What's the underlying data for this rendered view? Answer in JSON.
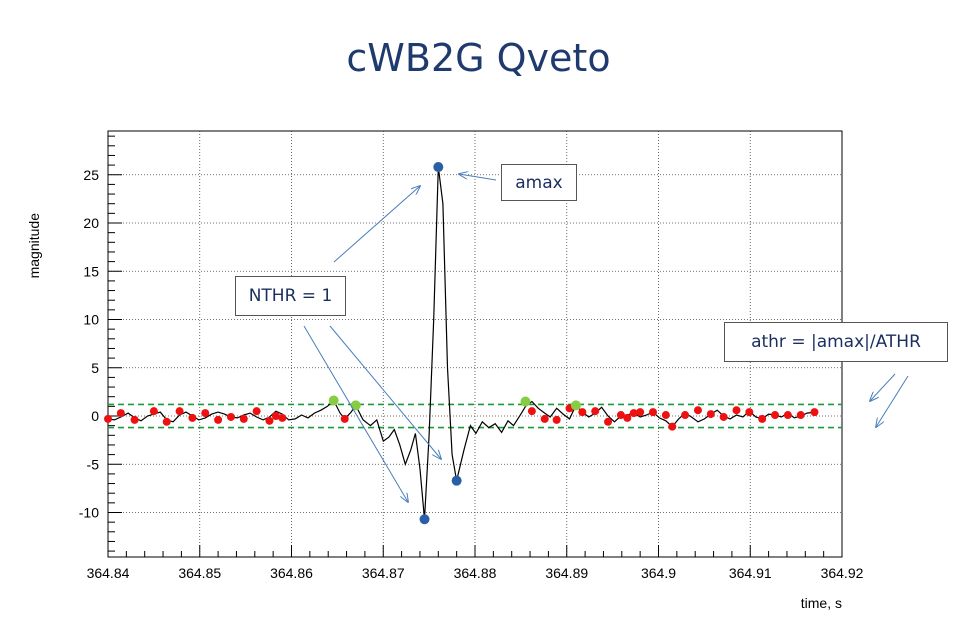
{
  "title": "cWB2G Qveto",
  "annotations": {
    "amax": "amax",
    "nthr": "NTHR = 1",
    "athr": "athr = |amax|/ATHR"
  },
  "colors": {
    "title": "#1f3a6e",
    "line": "#000000",
    "red_points": "#ee1111",
    "green_points": "#88cc44",
    "blue_points": "#2a5fa8",
    "threshold": "#1a9a3a",
    "arrows": "#4a7ebb"
  },
  "chart_data": {
    "type": "line",
    "xlabel": "time, s",
    "ylabel": "magnitude",
    "xlim": [
      364.84,
      364.92
    ],
    "ylim": [
      -14,
      29
    ],
    "x_ticks": [
      "364.84",
      "364.85",
      "364.86",
      "364.87",
      "364.88",
      "364.89",
      "364.9",
      "364.91",
      "364.92"
    ],
    "y_ticks": [
      "-10",
      "-5",
      "0",
      "5",
      "10",
      "15",
      "20",
      "25"
    ],
    "grid": true,
    "thresholds": [
      1.2,
      -1.2
    ],
    "curve": [
      [
        364.84,
        -0.3
      ],
      [
        364.8407,
        -0.4
      ],
      [
        364.8414,
        -0.1
      ],
      [
        364.8422,
        0.3
      ],
      [
        364.8429,
        -0.2
      ],
      [
        364.8436,
        -0.5
      ],
      [
        364.8443,
        0.0
      ],
      [
        364.845,
        0.2
      ],
      [
        364.8457,
        0.4
      ],
      [
        364.8464,
        -0.4
      ],
      [
        364.8471,
        -0.6
      ],
      [
        364.8478,
        0.1
      ],
      [
        364.8485,
        0.4
      ],
      [
        364.8492,
        0.0
      ],
      [
        364.8499,
        -0.4
      ],
      [
        364.8506,
        -0.2
      ],
      [
        364.8513,
        0.2
      ],
      [
        364.852,
        0.4
      ],
      [
        364.8527,
        0.2
      ],
      [
        364.8534,
        -0.1
      ],
      [
        364.8541,
        -0.2
      ],
      [
        364.8548,
        0.1
      ],
      [
        364.8555,
        0.3
      ],
      [
        364.8562,
        -0.1
      ],
      [
        364.8569,
        -0.4
      ],
      [
        364.8576,
        -0.1
      ],
      [
        364.8583,
        0.5
      ],
      [
        364.859,
        0.2
      ],
      [
        364.8597,
        -0.4
      ],
      [
        364.8604,
        -0.3
      ],
      [
        364.8611,
        0.1
      ],
      [
        364.8618,
        -0.2
      ],
      [
        364.8625,
        0.3
      ],
      [
        364.8632,
        0.6
      ],
      [
        364.8639,
        1.0
      ],
      [
        364.8646,
        1.6
      ],
      [
        364.8653,
        0.3
      ],
      [
        364.8658,
        -0.3
      ],
      [
        364.8665,
        0.4
      ],
      [
        364.867,
        1.1
      ],
      [
        364.8678,
        -0.4
      ],
      [
        364.8686,
        -1.0
      ],
      [
        364.8693,
        -0.4
      ],
      [
        364.87,
        -2.6
      ],
      [
        364.8706,
        -2.2
      ],
      [
        364.8712,
        -1.4
      ],
      [
        364.8718,
        -3.0
      ],
      [
        364.8724,
        -5.0
      ],
      [
        364.873,
        -3.5
      ],
      [
        364.8735,
        -1.8
      ],
      [
        364.874,
        -5.5
      ],
      [
        364.8745,
        -10.7
      ],
      [
        364.875,
        -2.0
      ],
      [
        364.8755,
        10.0
      ],
      [
        364.876,
        25.8
      ],
      [
        364.8765,
        22.0
      ],
      [
        364.877,
        5.0
      ],
      [
        364.8775,
        -4.0
      ],
      [
        364.878,
        -6.7
      ],
      [
        364.8788,
        -3.5
      ],
      [
        364.8795,
        -1.0
      ],
      [
        364.8801,
        -1.8
      ],
      [
        364.8808,
        -0.6
      ],
      [
        364.8815,
        -1.2
      ],
      [
        364.8822,
        -0.8
      ],
      [
        364.8829,
        -1.7
      ],
      [
        364.8836,
        -0.5
      ],
      [
        364.8842,
        -1.0
      ],
      [
        364.885,
        0.2
      ],
      [
        364.8855,
        1.0
      ],
      [
        364.8862,
        1.5
      ],
      [
        364.8869,
        0.8
      ],
      [
        364.8876,
        0.3
      ],
      [
        364.8882,
        -0.1
      ],
      [
        364.8889,
        0.8
      ],
      [
        364.8896,
        0.2
      ],
      [
        364.8903,
        -0.3
      ],
      [
        364.891,
        1.1
      ],
      [
        364.8917,
        0.4
      ],
      [
        364.8924,
        -0.1
      ],
      [
        364.8931,
        0.3
      ],
      [
        364.8938,
        0.9
      ],
      [
        364.8945,
        0.0
      ],
      [
        364.8952,
        -0.6
      ],
      [
        364.8959,
        0.0
      ],
      [
        364.8966,
        0.1
      ],
      [
        364.8973,
        0.3
      ],
      [
        364.898,
        -0.1
      ],
      [
        364.8987,
        0.1
      ],
      [
        364.8994,
        0.4
      ],
      [
        364.9001,
        -0.2
      ],
      [
        364.9008,
        -0.5
      ],
      [
        364.9015,
        -1.1
      ],
      [
        364.9022,
        -0.3
      ],
      [
        364.9029,
        0.3
      ],
      [
        364.9036,
        -0.1
      ],
      [
        364.9043,
        -0.6
      ],
      [
        364.905,
        -0.3
      ],
      [
        364.9057,
        0.2
      ],
      [
        364.9064,
        0.6
      ],
      [
        364.9071,
        0.0
      ],
      [
        364.9078,
        -0.3
      ],
      [
        364.9085,
        0.1
      ],
      [
        364.9092,
        -0.1
      ],
      [
        364.9099,
        0.5
      ],
      [
        364.9106,
        -0.1
      ],
      [
        364.9113,
        -0.3
      ],
      [
        364.912,
        0.2
      ],
      [
        364.9127,
        0.1
      ],
      [
        364.9134,
        -0.1
      ],
      [
        364.9141,
        0.3
      ],
      [
        364.9148,
        -0.2
      ],
      [
        364.9155,
        0.0
      ],
      [
        364.9162,
        0.3
      ],
      [
        364.917,
        0.4
      ]
    ],
    "red_points": [
      [
        364.84,
        -0.3
      ],
      [
        364.8414,
        0.3
      ],
      [
        364.8429,
        -0.4
      ],
      [
        364.845,
        0.5
      ],
      [
        364.8464,
        -0.6
      ],
      [
        364.8478,
        0.5
      ],
      [
        364.8492,
        -0.2
      ],
      [
        364.8506,
        0.3
      ],
      [
        364.852,
        -0.4
      ],
      [
        364.8534,
        -0.1
      ],
      [
        364.8548,
        -0.3
      ],
      [
        364.8562,
        0.5
      ],
      [
        364.8576,
        -0.5
      ],
      [
        364.8583,
        0.0
      ],
      [
        364.859,
        -0.2
      ],
      [
        364.8658,
        -0.3
      ],
      [
        364.8862,
        0.5
      ],
      [
        364.8876,
        -0.3
      ],
      [
        364.8889,
        -0.4
      ],
      [
        364.8903,
        0.8
      ],
      [
        364.8917,
        0.4
      ],
      [
        364.8931,
        0.5
      ],
      [
        364.8945,
        -0.6
      ],
      [
        364.8959,
        0.1
      ],
      [
        364.8966,
        -0.2
      ],
      [
        364.8973,
        0.3
      ],
      [
        364.898,
        0.4
      ],
      [
        364.8994,
        0.4
      ],
      [
        364.9008,
        0.1
      ],
      [
        364.9015,
        -1.1
      ],
      [
        364.9029,
        0.1
      ],
      [
        364.9043,
        0.6
      ],
      [
        364.9057,
        0.2
      ],
      [
        364.9071,
        -0.1
      ],
      [
        364.9085,
        0.6
      ],
      [
        364.9099,
        0.4
      ],
      [
        364.9113,
        -0.3
      ],
      [
        364.9127,
        0.1
      ],
      [
        364.9141,
        0.1
      ],
      [
        364.9155,
        0.1
      ],
      [
        364.917,
        0.4
      ]
    ],
    "green_points": [
      [
        364.8646,
        1.6
      ],
      [
        364.867,
        1.1
      ],
      [
        364.8855,
        1.5
      ],
      [
        364.891,
        1.1
      ]
    ],
    "blue_points": [
      [
        364.876,
        25.8
      ],
      [
        364.8745,
        -10.7
      ],
      [
        364.878,
        -6.7
      ]
    ]
  }
}
